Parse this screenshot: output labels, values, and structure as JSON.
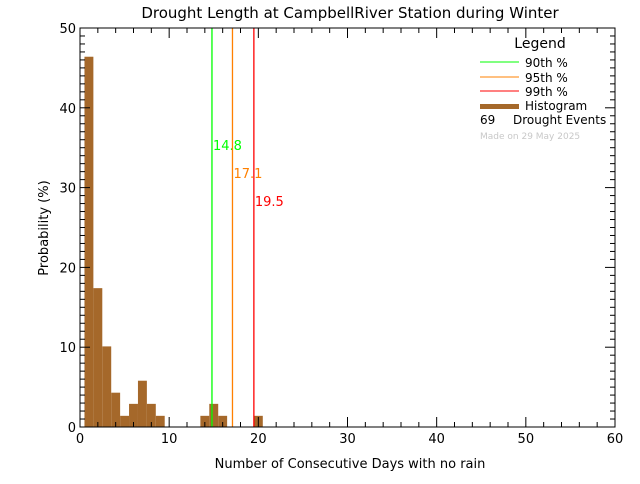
{
  "chart_data": {
    "type": "bar",
    "title": "Drought Length at CampbellRiver Station during Winter",
    "xlabel": "Number of Consecutive Days with no rain",
    "ylabel": "Probability (%)",
    "xlim": [
      0,
      60
    ],
    "ylim": [
      0,
      50
    ],
    "xticks": [
      0,
      10,
      20,
      30,
      40,
      50,
      60
    ],
    "yticks": [
      0,
      10,
      20,
      30,
      40,
      50
    ],
    "bin_width": 1,
    "x": [
      1,
      2,
      3,
      4,
      5,
      6,
      7,
      8,
      9,
      14,
      15,
      16,
      20
    ],
    "values": [
      46.4,
      17.4,
      10.1,
      4.3,
      1.4,
      2.9,
      5.8,
      2.9,
      1.4,
      1.4,
      2.9,
      1.4,
      1.4
    ],
    "bar_color": "#a5682a",
    "percentiles": [
      {
        "name": "90th %",
        "value": 14.8,
        "label": "14.8",
        "color": "#00ff00"
      },
      {
        "name": "95th %",
        "value": 17.1,
        "label": "17.1",
        "color": "#ff8000"
      },
      {
        "name": "99th %",
        "value": 19.5,
        "label": "19.5",
        "color": "#ff0000"
      }
    ],
    "legend": {
      "title": "Legend",
      "placement": "top-right",
      "histogram": "Histogram",
      "events_count": "69",
      "events_label": "Drought Events",
      "made_on": "Made on 29 May 2025"
    }
  }
}
